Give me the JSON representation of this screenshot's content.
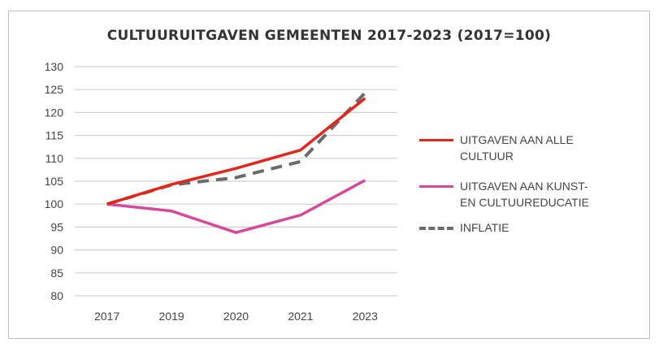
{
  "chart_data": {
    "type": "line",
    "title": "CULTUURUITGAVEN GEMEENTEN 2017-2023 (2017=100)",
    "xlabel": "",
    "ylabel": "",
    "categories": [
      "2017",
      "2019",
      "2020",
      "2021",
      "2023"
    ],
    "ylim": [
      80,
      130
    ],
    "yticks": [
      80,
      85,
      90,
      95,
      100,
      105,
      110,
      115,
      120,
      125,
      130
    ],
    "grid": true,
    "legend_position": "right",
    "series": [
      {
        "name": "UITGAVEN AAN ALLE CULTUUR",
        "lines": [
          "UITGAVEN AAN ALLE",
          "CULTUUR"
        ],
        "color": "#e1261c",
        "dash": false,
        "values": [
          100,
          104.3,
          107.8,
          111.8,
          123.1
        ]
      },
      {
        "name": "UITGAVEN AAN KUNST- EN CULTUUREDUCATIE",
        "lines": [
          "UITGAVEN AAN KUNST-",
          "EN CULTUUREDUCATIE"
        ],
        "color": "#d6499a",
        "dash": false,
        "values": [
          100,
          98.5,
          93.8,
          97.6,
          105.2
        ]
      },
      {
        "name": "INFLATIE",
        "lines": [
          "INFLATIE"
        ],
        "color": "#6b6b6b",
        "dash": true,
        "values": [
          100,
          104.2,
          105.8,
          109.3,
          124.3
        ]
      }
    ]
  }
}
